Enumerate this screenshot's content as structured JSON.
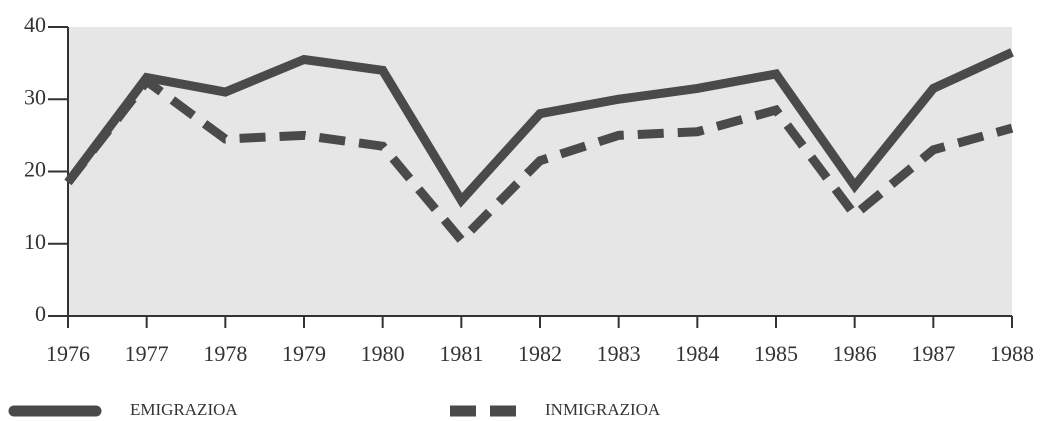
{
  "chart_data": {
    "type": "line",
    "categories": [
      "1976",
      "1977",
      "1978",
      "1979",
      "1980",
      "1981",
      "1982",
      "1983",
      "1984",
      "1985",
      "1986",
      "1987",
      "1988"
    ],
    "series": [
      {
        "name": "EMIGRAZIOA",
        "color": "#4a4a4a",
        "linestyle": "solid",
        "values": [
          18.5,
          33,
          31,
          35.5,
          34,
          16,
          28,
          30,
          31.5,
          33.5,
          18,
          31.5,
          36.5
        ]
      },
      {
        "name": "INMIGRAZIOA",
        "color": "#4a4a4a",
        "linestyle": "dashed",
        "values": [
          18.5,
          32.5,
          24.5,
          25,
          23.5,
          10.5,
          21.5,
          25,
          25.5,
          28.5,
          14,
          23,
          26
        ]
      }
    ],
    "ylim": [
      0,
      40
    ],
    "yticks": [
      0,
      10,
      20,
      30,
      40
    ],
    "grid": false
  }
}
